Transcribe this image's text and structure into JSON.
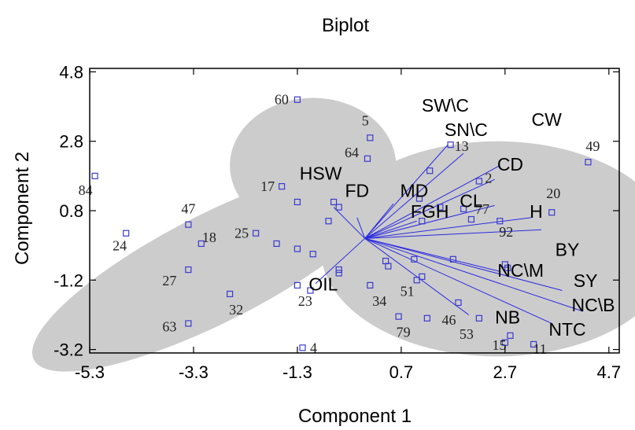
{
  "chart_data": {
    "type": "scatter",
    "title": "Biplot",
    "xlabel": "Component 1",
    "ylabel": "Component 2",
    "xlim": [
      -5.3,
      4.9
    ],
    "ylim": [
      -3.3,
      4.9
    ],
    "xticks": [
      "-5.3",
      "-3.3",
      "-1.3",
      "0.7",
      "2.7",
      "4.7"
    ],
    "yticks": [
      "4.8",
      "2.8",
      "0.8",
      "-1.2",
      "-3.2"
    ],
    "xtick_values": [
      -5.3,
      -3.3,
      -1.3,
      0.7,
      2.7,
      4.7
    ],
    "ytick_values": [
      4.8,
      2.8,
      0.8,
      -1.2,
      -3.2
    ],
    "grid": false,
    "colors": {
      "points": "#3a3ad0",
      "vectors": "#2a2ae0",
      "clusters": "#cccccc",
      "axes": "#000000"
    },
    "clusters": [
      {
        "cx": -2.9,
        "cy": -0.85,
        "rx": 3.9,
        "ry": 1.55,
        "rotation_deg": -27
      },
      {
        "cx": -1.0,
        "cy": 2.1,
        "rx": 1.6,
        "ry": 1.95,
        "rotation_deg": 0
      },
      {
        "cx": 2.55,
        "cy": -0.3,
        "rx": 3.4,
        "ry": 3.1,
        "rotation_deg": 0
      }
    ],
    "points": [
      {
        "label": "60",
        "x": -1.3,
        "y": 4.0
      },
      {
        "label": "5",
        "x": 0.1,
        "y": 2.9
      },
      {
        "label": "64",
        "x": 0.05,
        "y": 2.3
      },
      {
        "label": "17",
        "x": -1.6,
        "y": 1.5
      },
      {
        "label": "",
        "x": -1.3,
        "y": 1.05
      },
      {
        "label": "",
        "x": -0.6,
        "y": 1.05
      },
      {
        "label": "",
        "x": -0.5,
        "y": 0.9
      },
      {
        "label": "",
        "x": -0.7,
        "y": 0.5
      },
      {
        "label": "84",
        "x": -5.2,
        "y": 1.8
      },
      {
        "label": "24",
        "x": -4.6,
        "y": 0.15
      },
      {
        "label": "47",
        "x": -3.4,
        "y": 0.4
      },
      {
        "label": "18",
        "x": -3.15,
        "y": -0.15
      },
      {
        "label": "25",
        "x": -2.1,
        "y": 0.15
      },
      {
        "label": "",
        "x": -1.7,
        "y": -0.15
      },
      {
        "label": "",
        "x": -1.3,
        "y": -0.3
      },
      {
        "label": "",
        "x": -1.0,
        "y": -0.45
      },
      {
        "label": "27",
        "x": -3.4,
        "y": -0.9
      },
      {
        "label": "32",
        "x": -2.6,
        "y": -1.6
      },
      {
        "label": "23",
        "x": -1.3,
        "y": -1.35
      },
      {
        "label": "",
        "x": -1.05,
        "y": -1.5
      },
      {
        "label": "",
        "x": -0.5,
        "y": -0.9
      },
      {
        "label": "",
        "x": -0.5,
        "y": -1.0
      },
      {
        "label": "63",
        "x": -3.4,
        "y": -2.45
      },
      {
        "label": "4",
        "x": -1.2,
        "y": -3.15
      },
      {
        "label": "13",
        "x": 1.65,
        "y": 2.7
      },
      {
        "label": "2",
        "x": 2.2,
        "y": 1.65
      },
      {
        "label": "49",
        "x": 4.3,
        "y": 2.2
      },
      {
        "label": "",
        "x": 1.05,
        "y": 1.15
      },
      {
        "label": "",
        "x": 1.25,
        "y": 1.95
      },
      {
        "label": "",
        "x": 1.45,
        "y": 0.9
      },
      {
        "label": "",
        "x": 1.1,
        "y": 0.5
      },
      {
        "label": "77",
        "x": 1.9,
        "y": 0.85
      },
      {
        "label": "20",
        "x": 3.6,
        "y": 0.75
      },
      {
        "label": "92",
        "x": 2.6,
        "y": 0.5
      },
      {
        "label": "",
        "x": 2.05,
        "y": 0.55
      },
      {
        "label": "",
        "x": 0.4,
        "y": -0.65
      },
      {
        "label": "",
        "x": 0.45,
        "y": -0.8
      },
      {
        "label": "",
        "x": 0.95,
        "y": -0.6
      },
      {
        "label": "",
        "x": 1.7,
        "y": -0.6
      },
      {
        "label": "",
        "x": 2.7,
        "y": -0.75
      },
      {
        "label": "",
        "x": 2.75,
        "y": -0.85
      },
      {
        "label": "51",
        "x": 1.0,
        "y": -1.2
      },
      {
        "label": "",
        "x": 1.1,
        "y": -1.1
      },
      {
        "label": "34",
        "x": 0.1,
        "y": -1.35
      },
      {
        "label": "46",
        "x": 1.8,
        "y": -1.85
      },
      {
        "label": "79",
        "x": 0.65,
        "y": -2.25
      },
      {
        "label": "",
        "x": 1.2,
        "y": -2.3
      },
      {
        "label": "53",
        "x": 2.2,
        "y": -2.3
      },
      {
        "label": "15",
        "x": 2.8,
        "y": -2.8
      },
      {
        "label": "11",
        "x": 3.25,
        "y": -3.05
      },
      {
        "label": "",
        "x": 2.7,
        "y": -3.0
      }
    ],
    "vectors": [
      {
        "label": "SW\\C",
        "x": 1.6,
        "y": 2.7
      },
      {
        "label": "SN\\C",
        "x": 1.9,
        "y": 2.45
      },
      {
        "label": "CW",
        "x": 2.6,
        "y": 2.1
      },
      {
        "label": "CD",
        "x": 2.5,
        "y": 1.7
      },
      {
        "label": "HSW",
        "x": -0.6,
        "y": 0.9
      },
      {
        "label": "FD",
        "x": -0.15,
        "y": 0.6
      },
      {
        "label": "MD",
        "x": 0.55,
        "y": 1.0
      },
      {
        "label": "CL",
        "x": 2.5,
        "y": 0.95
      },
      {
        "label": "H",
        "x": 3.2,
        "y": 0.6
      },
      {
        "label": "FGH",
        "x": 1.0,
        "y": 0.5
      },
      {
        "label": "BY",
        "x": 3.4,
        "y": 0.25
      },
      {
        "label": "NC\\M",
        "x": 2.6,
        "y": -0.95
      },
      {
        "label": "SY",
        "x": 3.8,
        "y": -1.5
      },
      {
        "label": "NC\\B",
        "x": 4.2,
        "y": -2.1
      },
      {
        "label": "NTC",
        "x": 3.6,
        "y": -2.45
      },
      {
        "label": "NB",
        "x": 2.0,
        "y": -2.2
      },
      {
        "label": "OIL",
        "x": -0.95,
        "y": -1.3
      }
    ],
    "vector_label_positions": [
      {
        "label": "SW\\C",
        "x": 1.55,
        "y": 3.65
      },
      {
        "label": "SN\\C",
        "x": 1.95,
        "y": 2.95
      },
      {
        "label": "CW",
        "x": 3.5,
        "y": 3.25
      },
      {
        "label": "CD",
        "x": 2.8,
        "y": 1.95
      },
      {
        "label": "HSW",
        "x": -0.85,
        "y": 1.7
      },
      {
        "label": "FD",
        "x": -0.15,
        "y": 1.2
      },
      {
        "label": "MD",
        "x": 0.95,
        "y": 1.2
      },
      {
        "label": "CL",
        "x": 2.05,
        "y": 0.9
      },
      {
        "label": "H",
        "x": 3.3,
        "y": 0.6
      },
      {
        "label": "FGH",
        "x": 1.25,
        "y": 0.6
      },
      {
        "label": "BY",
        "x": 3.9,
        "y": -0.5
      },
      {
        "label": "NC\\M",
        "x": 3.0,
        "y": -1.1
      },
      {
        "label": "SY",
        "x": 4.25,
        "y": -1.4
      },
      {
        "label": "NC\\B",
        "x": 4.4,
        "y": -2.1
      },
      {
        "label": "NTC",
        "x": 3.9,
        "y": -2.8
      },
      {
        "label": "NB",
        "x": 2.75,
        "y": -2.45
      },
      {
        "label": "OIL",
        "x": -0.8,
        "y": -1.5
      }
    ]
  }
}
